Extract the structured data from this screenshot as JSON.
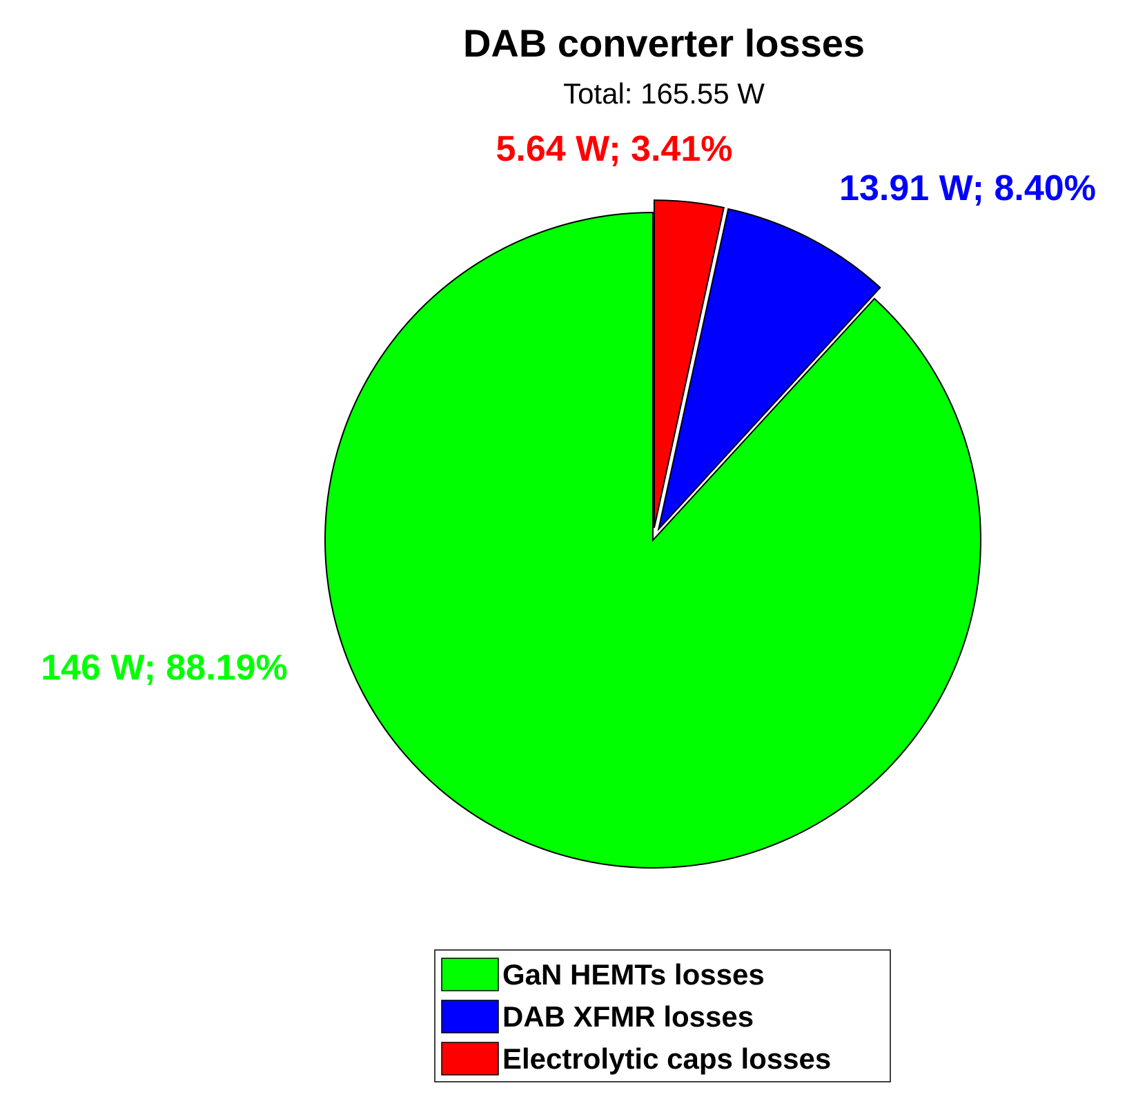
{
  "chart_data": {
    "type": "pie",
    "title": "DAB converter losses",
    "subtitle": "Total: 165.55 W",
    "slices": [
      {
        "name": "GaN HEMTs losses",
        "value": 146,
        "percent": 88.19,
        "label": "146 W; 88.19%",
        "color": "#00ff00",
        "exploded": false
      },
      {
        "name": "DAB XFMR losses",
        "value": 13.91,
        "percent": 8.4,
        "label": "13.91 W; 8.40%",
        "color": "#0000ff",
        "exploded": true
      },
      {
        "name": "Electrolytic caps losses",
        "value": 5.64,
        "percent": 3.41,
        "label": "5.64 W; 3.41%",
        "color": "#ff0000",
        "exploded": true
      }
    ],
    "legend": {
      "position": "bottom-center",
      "entries": [
        "GaN HEMTs losses",
        "DAB XFMR losses",
        "Electrolytic caps losses"
      ]
    }
  }
}
